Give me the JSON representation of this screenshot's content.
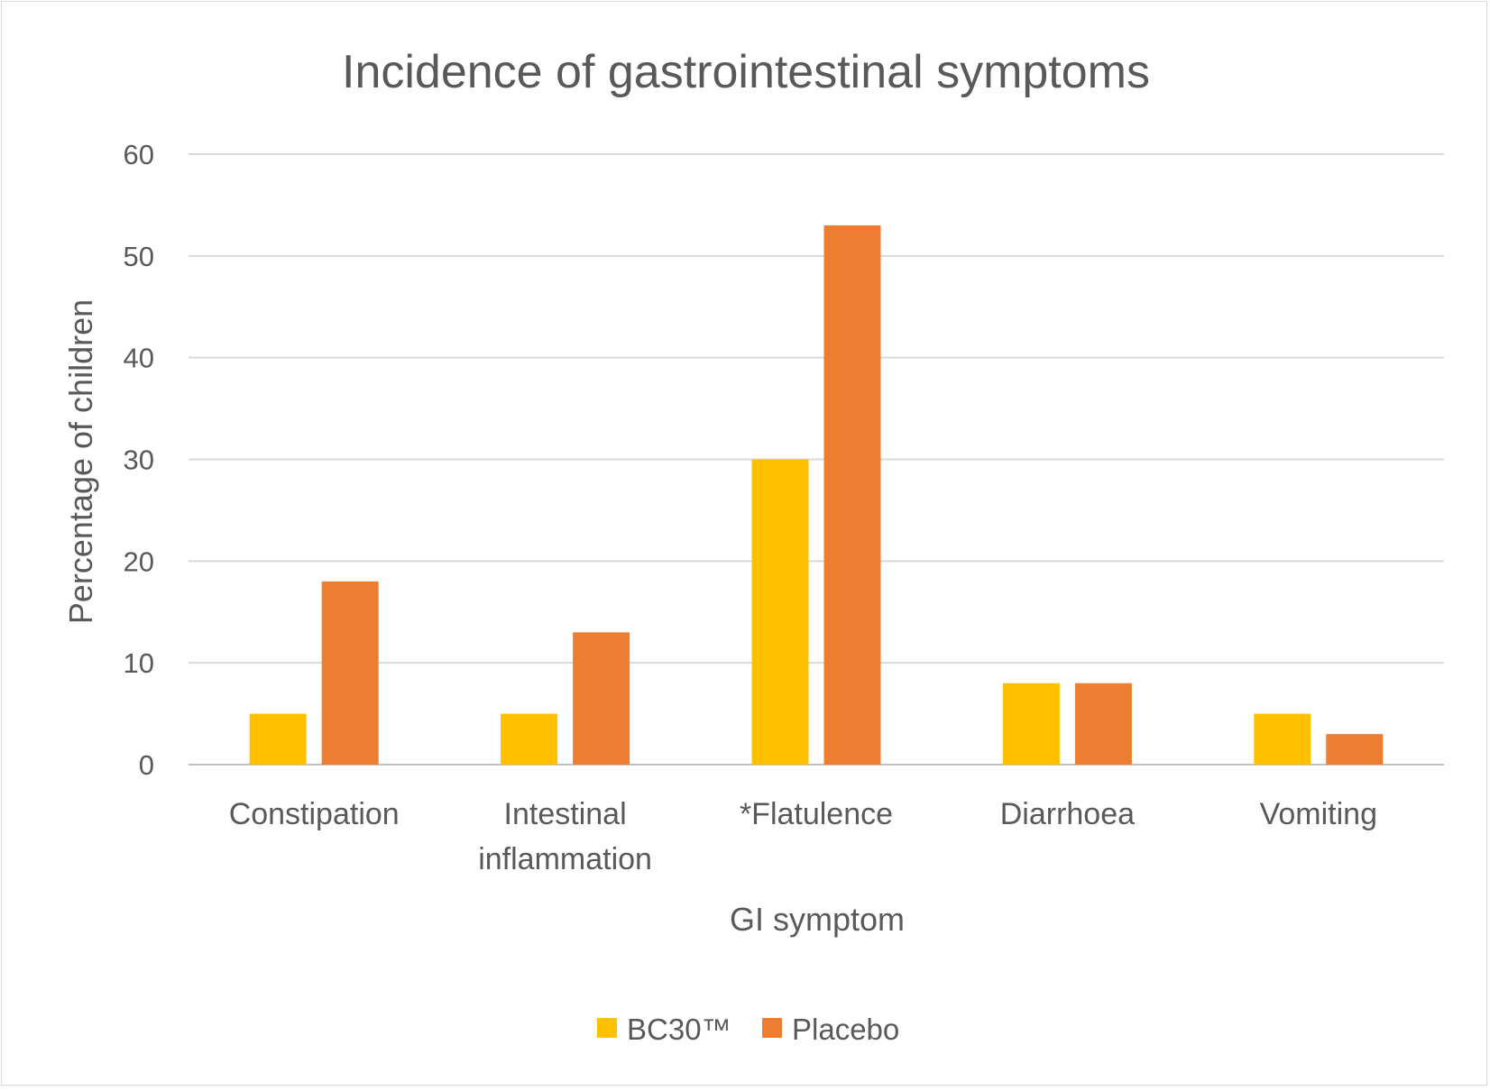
{
  "chart_data": {
    "type": "bar",
    "title": "Incidence of gastrointestinal symptoms",
    "xlabel": "GI symptom",
    "ylabel": "Percentage of children",
    "categories": [
      [
        "Constipation"
      ],
      [
        "Intestinal",
        "inflammation"
      ],
      [
        "*Flatulence"
      ],
      [
        "Diarrhoea"
      ],
      [
        "Vomiting"
      ]
    ],
    "series": [
      {
        "name": "BC30™",
        "color": "#FFC000",
        "values": [
          5,
          5,
          30,
          8,
          5
        ]
      },
      {
        "name": "Placebo",
        "color": "#ED7D31",
        "values": [
          18,
          13,
          53,
          8,
          3
        ]
      }
    ],
    "ylim": [
      0,
      60
    ],
    "yticks": [
      0,
      10,
      20,
      30,
      40,
      50,
      60
    ],
    "grid": true,
    "legend": "bottom"
  }
}
